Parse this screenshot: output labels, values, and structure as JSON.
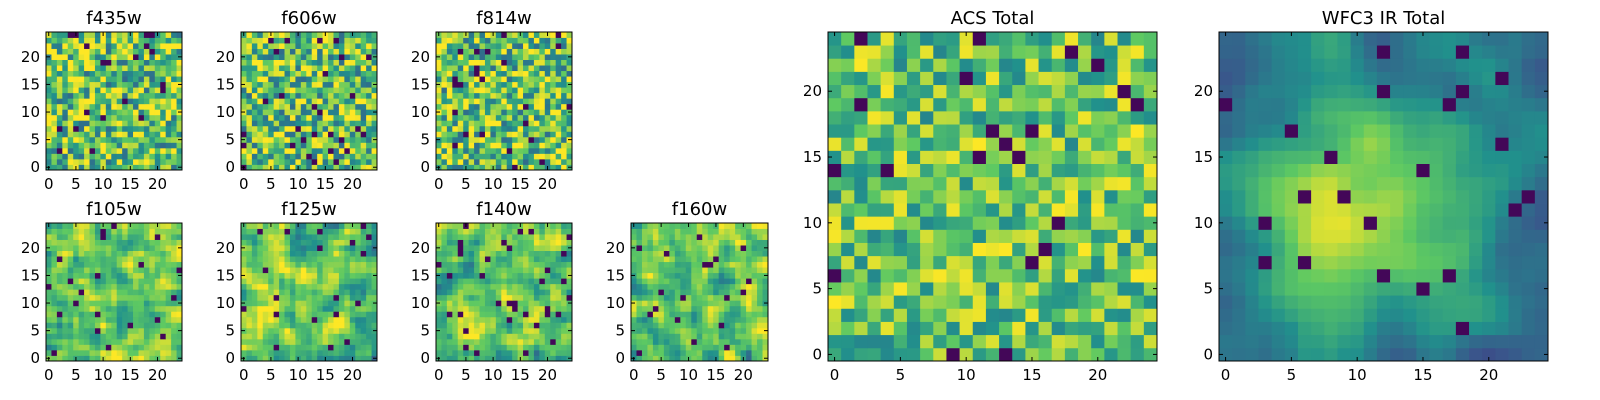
{
  "colormap": {
    "name": "viridis",
    "stops": [
      "#440154",
      "#3b528b",
      "#21918c",
      "#5ec962",
      "#fde725"
    ]
  },
  "chart_data": [
    {
      "type": "heatmap",
      "title": "f435w",
      "size": 25,
      "xlim": [
        -0.5,
        24.5
      ],
      "ylim": [
        -0.5,
        24.5
      ],
      "xticks": [
        0,
        5,
        10,
        15,
        20
      ],
      "yticks": [
        0,
        5,
        10,
        15,
        20
      ],
      "xtick_labels": [
        "0",
        "5",
        "10",
        "15",
        "20"
      ],
      "ytick_labels": [
        "0",
        "5",
        "10",
        "15",
        "20"
      ],
      "pattern": "noise",
      "seed": 11
    },
    {
      "type": "heatmap",
      "title": "f606w",
      "size": 25,
      "xlim": [
        -0.5,
        24.5
      ],
      "ylim": [
        -0.5,
        24.5
      ],
      "xticks": [
        0,
        5,
        10,
        15,
        20
      ],
      "yticks": [
        0,
        5,
        10,
        15,
        20
      ],
      "xtick_labels": [
        "0",
        "5",
        "10",
        "15",
        "20"
      ],
      "ytick_labels": [
        "0",
        "5",
        "10",
        "15",
        "20"
      ],
      "pattern": "noise",
      "seed": 23
    },
    {
      "type": "heatmap",
      "title": "f814w",
      "size": 25,
      "xlim": [
        -0.5,
        24.5
      ],
      "ylim": [
        -0.5,
        24.5
      ],
      "xticks": [
        0,
        5,
        10,
        15,
        20
      ],
      "yticks": [
        0,
        5,
        10,
        15,
        20
      ],
      "xtick_labels": [
        "0",
        "5",
        "10",
        "15",
        "20"
      ],
      "ytick_labels": [
        "0",
        "5",
        "10",
        "15",
        "20"
      ],
      "pattern": "noise",
      "seed": 37
    },
    {
      "type": "heatmap",
      "title": "f105w",
      "size": 25,
      "xlim": [
        -0.5,
        24.5
      ],
      "ylim": [
        -0.5,
        24.5
      ],
      "xticks": [
        0,
        5,
        10,
        15,
        20
      ],
      "yticks": [
        0,
        5,
        10,
        15,
        20
      ],
      "xtick_labels": [
        "0",
        "5",
        "10",
        "15",
        "20"
      ],
      "ytick_labels": [
        "0",
        "5",
        "10",
        "15",
        "20"
      ],
      "pattern": "smooth",
      "seed": 41
    },
    {
      "type": "heatmap",
      "title": "f125w",
      "size": 25,
      "xlim": [
        -0.5,
        24.5
      ],
      "ylim": [
        -0.5,
        24.5
      ],
      "xticks": [
        0,
        5,
        10,
        15,
        20
      ],
      "yticks": [
        0,
        5,
        10,
        15,
        20
      ],
      "xtick_labels": [
        "0",
        "5",
        "10",
        "15",
        "20"
      ],
      "ytick_labels": [
        "0",
        "5",
        "10",
        "15",
        "20"
      ],
      "pattern": "smooth",
      "seed": 53
    },
    {
      "type": "heatmap",
      "title": "f140w",
      "size": 25,
      "xlim": [
        -0.5,
        24.5
      ],
      "ylim": [
        -0.5,
        24.5
      ],
      "xticks": [
        0,
        5,
        10,
        15,
        20
      ],
      "yticks": [
        0,
        5,
        10,
        15,
        20
      ],
      "xtick_labels": [
        "0",
        "5",
        "10",
        "15",
        "20"
      ],
      "ytick_labels": [
        "0",
        "5",
        "10",
        "15",
        "20"
      ],
      "pattern": "smooth",
      "seed": 67
    },
    {
      "type": "heatmap",
      "title": "f160w",
      "size": 25,
      "xlim": [
        -0.5,
        24.5
      ],
      "ylim": [
        -0.5,
        24.5
      ],
      "xticks": [
        0,
        5,
        10,
        15,
        20
      ],
      "yticks": [
        0,
        5,
        10,
        15,
        20
      ],
      "xtick_labels": [
        "0",
        "5",
        "10",
        "15",
        "20"
      ],
      "ytick_labels": [
        "0",
        "5",
        "10",
        "15",
        "20"
      ],
      "pattern": "smooth",
      "seed": 79
    },
    {
      "type": "heatmap",
      "title": "ACS Total",
      "size": 25,
      "xlim": [
        -0.5,
        24.5
      ],
      "ylim": [
        -0.5,
        24.5
      ],
      "xticks": [
        0,
        5,
        10,
        15,
        20
      ],
      "yticks": [
        0,
        5,
        10,
        15,
        20
      ],
      "xtick_labels": [
        "0",
        "5",
        "10",
        "15",
        "20"
      ],
      "ytick_labels": [
        "0",
        "5",
        "10",
        "15",
        "20"
      ],
      "pattern": "total-noise",
      "seed": 97
    },
    {
      "type": "heatmap",
      "title": "WFC3 IR Total",
      "size": 25,
      "xlim": [
        -0.5,
        24.5
      ],
      "ylim": [
        -0.5,
        24.5
      ],
      "xticks": [
        0,
        5,
        10,
        15,
        20
      ],
      "yticks": [
        0,
        5,
        10,
        15,
        20
      ],
      "xtick_labels": [
        "0",
        "5",
        "10",
        "15",
        "20"
      ],
      "ytick_labels": [
        "0",
        "5",
        "10",
        "15",
        "20"
      ],
      "pattern": "source",
      "peak": [
        11,
        11
      ],
      "seed": 101
    }
  ]
}
